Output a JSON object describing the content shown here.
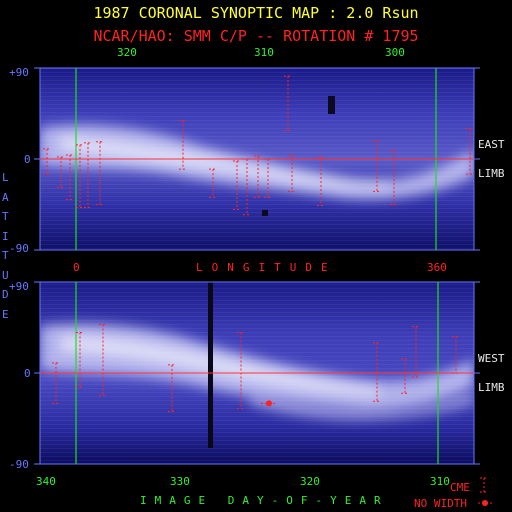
{
  "title": "1987 CORONAL SYNOPTIC MAP : 2.0 Rsun",
  "subtitle": "NCAR/HAO: SMM C/P -- ROTATION # 1795",
  "top_panel": {
    "x_ticks": [
      "320",
      "310",
      "300"
    ],
    "y_ticks": [
      "+90",
      "0",
      "-90"
    ],
    "side_label": [
      "EAST",
      "LIMB"
    ]
  },
  "bottom_panel": {
    "x_ticks": [
      "340",
      "330",
      "320",
      "310"
    ],
    "y_ticks": [
      "+90",
      "0",
      "-90"
    ],
    "side_label": [
      "WEST",
      "LIMB"
    ]
  },
  "middle_axis": {
    "left_tick": "0",
    "right_tick": "360",
    "label": "LONGITUDE"
  },
  "y_axis_label": "LATITUDE",
  "x_axis_label": "IMAGE DAY-OF-YEAR",
  "legend": {
    "cme": "CME",
    "no_width": "NO WIDTH"
  },
  "colors": {
    "title": "#ffff33",
    "accent": "#ff2222",
    "grid": "#33ee33",
    "axis": "#6677ff"
  },
  "chart_data": [
    {
      "type": "heatmap",
      "title": "1987 CORONAL SYNOPTIC MAP : 2.0 Rsun",
      "xlabel": "LONGITUDE",
      "ylabel": "LATITUDE",
      "ylim": [
        -90,
        90
      ],
      "x_day_ticks": [
        320,
        310,
        300
      ],
      "longitude_ticks": [
        0,
        360
      ],
      "cme_bars": [
        {
          "x": 47,
          "lat": [
            10,
            -15
          ]
        },
        {
          "x": 61,
          "lat": [
            2,
            -28
          ]
        },
        {
          "x": 70,
          "lat": [
            4,
            -40
          ]
        },
        {
          "x": 80,
          "lat": [
            14,
            -48
          ]
        },
        {
          "x": 88,
          "lat": [
            16,
            -48
          ]
        },
        {
          "x": 100,
          "lat": [
            17,
            -45
          ]
        },
        {
          "x": 183,
          "lat": [
            38,
            -10
          ]
        },
        {
          "x": 213,
          "lat": [
            -10,
            -38
          ]
        },
        {
          "x": 237,
          "lat": [
            -2,
            -50
          ]
        },
        {
          "x": 247,
          "lat": [
            0,
            -55
          ]
        },
        {
          "x": 258,
          "lat": [
            3,
            -38
          ]
        },
        {
          "x": 268,
          "lat": [
            0,
            -38
          ]
        },
        {
          "x": 288,
          "lat": [
            82,
            28
          ]
        },
        {
          "x": 292,
          "lat": [
            4,
            -32
          ]
        },
        {
          "x": 321,
          "lat": [
            2,
            -46
          ]
        },
        {
          "x": 377,
          "lat": [
            18,
            -32
          ]
        },
        {
          "x": 394,
          "lat": [
            8,
            -45
          ]
        },
        {
          "x": 470,
          "lat": [
            30,
            -15
          ]
        }
      ]
    },
    {
      "type": "heatmap",
      "title": "",
      "xlabel": "IMAGE DAY-OF-YEAR",
      "ylabel": "LATITUDE",
      "ylim": [
        -90,
        90
      ],
      "x_day_ticks": [
        340,
        330,
        320,
        310
      ],
      "cme_bars": [
        {
          "x": 56,
          "lat": [
            10,
            -30
          ]
        },
        {
          "x": 80,
          "lat": [
            40,
            -14
          ]
        },
        {
          "x": 103,
          "lat": [
            48,
            -22
          ]
        },
        {
          "x": 172,
          "lat": [
            8,
            -38
          ]
        },
        {
          "x": 241,
          "lat": [
            40,
            -35
          ]
        },
        {
          "x": 377,
          "lat": [
            30,
            -28
          ]
        },
        {
          "x": 405,
          "lat": [
            14,
            -20
          ]
        },
        {
          "x": 416,
          "lat": [
            46,
            -4
          ]
        },
        {
          "x": 456,
          "lat": [
            36,
            0
          ]
        }
      ],
      "no_width_points": [
        {
          "x": 269,
          "lat": -30
        }
      ]
    }
  ]
}
